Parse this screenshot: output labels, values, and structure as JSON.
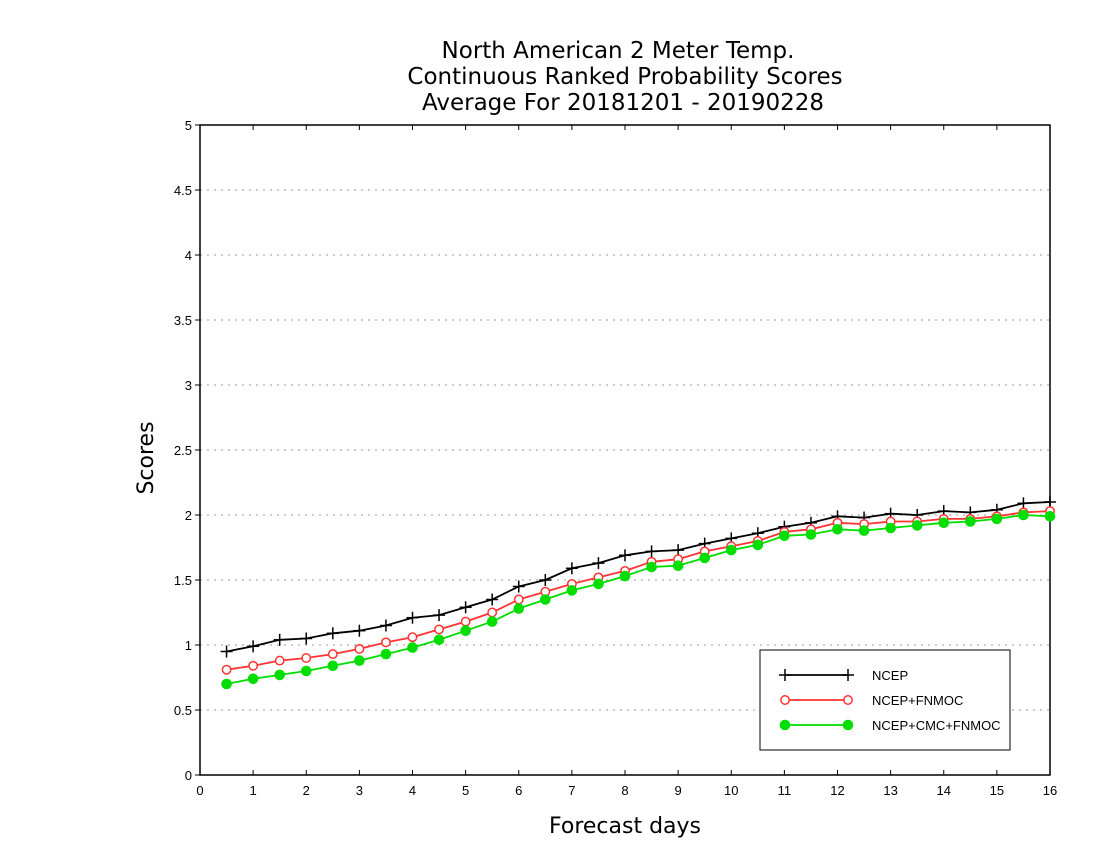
{
  "chart_data": {
    "type": "line",
    "title_lines": [
      "North American 2 Meter Temp.",
      "Continuous Ranked Probability Scores",
      "Average For 20181201 - 20190228"
    ],
    "xlabel": "Forecast days",
    "ylabel": "Scores",
    "xlim": [
      0,
      16
    ],
    "ylim": [
      0,
      5
    ],
    "x_ticks": [
      0,
      1,
      2,
      3,
      4,
      5,
      6,
      7,
      8,
      9,
      10,
      11,
      12,
      13,
      14,
      15,
      16
    ],
    "x_tick_labels": [
      "0",
      "1",
      "2",
      "3",
      "4",
      "5",
      "6",
      "7",
      "8",
      "9",
      "10",
      "11",
      "12",
      "13",
      "14",
      "15",
      "16"
    ],
    "y_ticks": [
      0,
      0.5,
      1,
      1.5,
      2,
      2.5,
      3,
      3.5,
      4,
      4.5,
      5
    ],
    "y_tick_labels": [
      "0",
      "0.5",
      "1",
      "1.5",
      "2",
      "2.5",
      "3",
      "3.5",
      "4",
      "4.5",
      "5"
    ],
    "grid": "horizontal dotted",
    "legend_position": "bottom-right",
    "x": [
      0.5,
      1.0,
      1.5,
      2.0,
      2.5,
      3.0,
      3.5,
      4.0,
      4.5,
      5.0,
      5.5,
      6.0,
      6.5,
      7.0,
      7.5,
      8.0,
      8.5,
      9.0,
      9.5,
      10.0,
      10.5,
      11.0,
      11.5,
      12.0,
      12.5,
      13.0,
      13.5,
      14.0,
      14.5,
      15.0,
      15.5,
      16.0
    ],
    "series": [
      {
        "name": "NCEP",
        "color": "#000000",
        "marker": "plus",
        "values": [
          0.95,
          0.99,
          1.04,
          1.05,
          1.09,
          1.11,
          1.15,
          1.21,
          1.23,
          1.29,
          1.35,
          1.45,
          1.5,
          1.59,
          1.63,
          1.69,
          1.72,
          1.73,
          1.78,
          1.82,
          1.86,
          1.91,
          1.94,
          1.99,
          1.98,
          2.01,
          2.0,
          2.03,
          2.02,
          2.04,
          2.09,
          2.1
        ]
      },
      {
        "name": "NCEP+FNMOC",
        "color": "#ff3333",
        "marker": "open-circle",
        "values": [
          0.81,
          0.84,
          0.88,
          0.9,
          0.93,
          0.97,
          1.02,
          1.06,
          1.12,
          1.18,
          1.25,
          1.35,
          1.41,
          1.47,
          1.52,
          1.57,
          1.64,
          1.66,
          1.72,
          1.76,
          1.8,
          1.87,
          1.89,
          1.94,
          1.93,
          1.95,
          1.95,
          1.97,
          1.97,
          1.99,
          2.02,
          2.03
        ]
      },
      {
        "name": "NCEP+CMC+FNMOC",
        "color": "#00dd00",
        "marker": "filled-circle",
        "values": [
          0.7,
          0.74,
          0.77,
          0.8,
          0.84,
          0.88,
          0.93,
          0.98,
          1.04,
          1.11,
          1.18,
          1.28,
          1.35,
          1.42,
          1.47,
          1.53,
          1.6,
          1.61,
          1.67,
          1.73,
          1.77,
          1.84,
          1.85,
          1.89,
          1.88,
          1.9,
          1.92,
          1.94,
          1.95,
          1.97,
          2.0,
          1.99
        ]
      }
    ]
  }
}
